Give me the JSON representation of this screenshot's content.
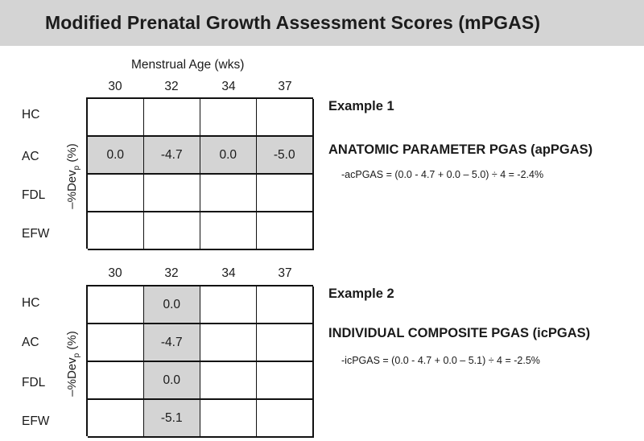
{
  "header": {
    "title": "Modified Prenatal Growth Assessment Scores (mPGAS)"
  },
  "axis": {
    "x_title": "Menstrual Age (wks)",
    "y_title_prefix": "–%Dev",
    "y_title_sub": "p",
    "y_title_suffix": " (%)"
  },
  "columns": [
    "30",
    "32",
    "34",
    "37"
  ],
  "rows": [
    "HC",
    "AC",
    "FDL",
    "EFW"
  ],
  "grid1": {
    "cells": [
      [
        "",
        "",
        "",
        ""
      ],
      [
        "0.0",
        "-4.7",
        "0.0",
        "-5.0"
      ],
      [
        "",
        "",
        "",
        ""
      ],
      [
        "",
        "",
        "",
        ""
      ]
    ],
    "shaded": [
      [
        1,
        0
      ],
      [
        1,
        1
      ],
      [
        1,
        2
      ],
      [
        1,
        3
      ]
    ]
  },
  "grid2": {
    "cells": [
      [
        "",
        "0.0",
        "",
        ""
      ],
      [
        "",
        "-4.7",
        "",
        ""
      ],
      [
        "",
        "0.0",
        "",
        ""
      ],
      [
        "",
        "-5.1",
        "",
        ""
      ]
    ],
    "shaded": [
      [
        0,
        1
      ],
      [
        1,
        1
      ],
      [
        2,
        1
      ],
      [
        3,
        1
      ]
    ]
  },
  "example1": {
    "title": "Example 1",
    "heading": "ANATOMIC PARAMETER PGAS (apPGAS)",
    "formula": "-acPGAS = (0.0 - 4.7 + 0.0 – 5.0) ÷ 4 = -2.4%"
  },
  "example2": {
    "title": "Example 2",
    "heading": "INDIVIDUAL COMPOSITE PGAS (icPGAS)",
    "formula": "-icPGAS = (0.0 - 4.7 + 0.0 – 5.1) ÷ 4 = -2.5%"
  },
  "colors": {
    "header_bg": "#d4d4d4",
    "shaded_cell": "#d4d4d4",
    "grid_line": "#111111"
  }
}
